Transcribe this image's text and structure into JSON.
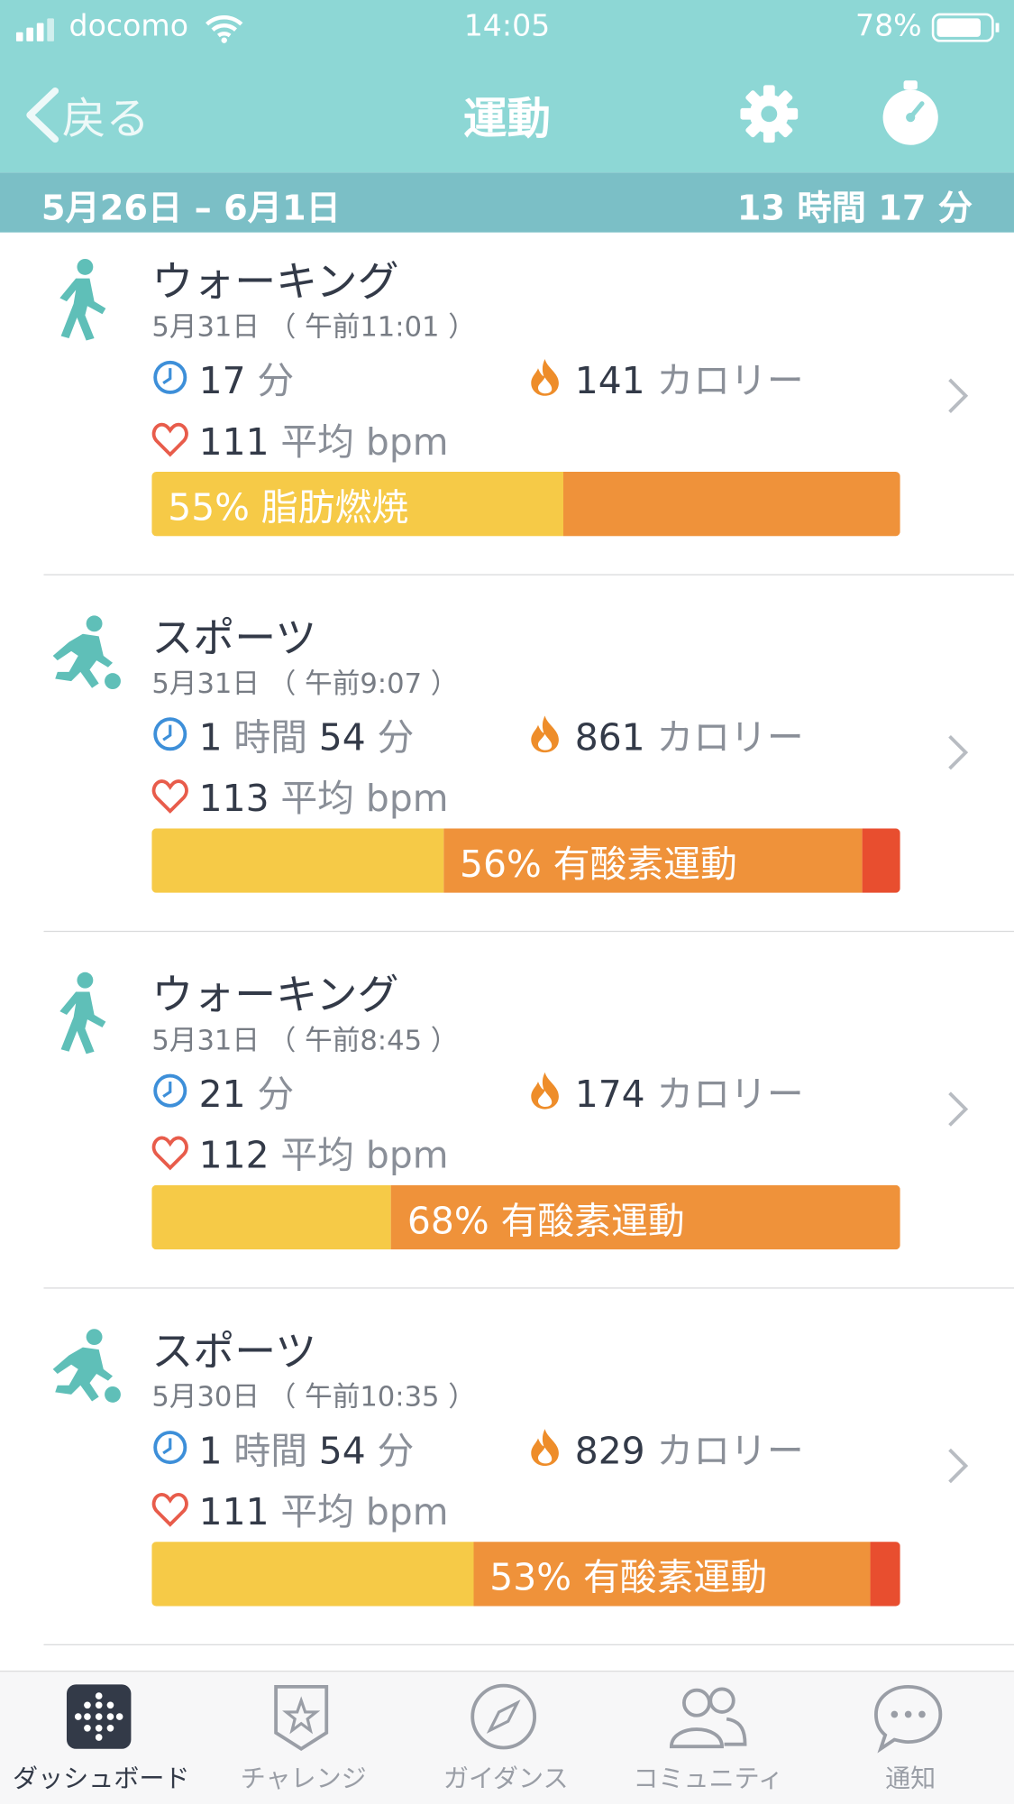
{
  "status_bar": {
    "carrier": "docomo",
    "time": "14:05",
    "battery": "78%"
  },
  "nav": {
    "back": "戻る",
    "title": "運動"
  },
  "summary": {
    "date_range": "5月26日 – 6月1日",
    "total": "13 時間 17 分"
  },
  "zone_colors": [
    "#f6ca47",
    "#ef923a",
    "#e84e2f"
  ],
  "activities": [
    {
      "icon": "walking",
      "name": "ウォーキング",
      "date": "5月31日 （ 午前11:01 ）",
      "duration": [
        "17",
        "分"
      ],
      "calories": [
        "141",
        "カロリー"
      ],
      "heart_rate": [
        "111",
        "平均 bpm"
      ],
      "zone_label": "55% 脂肪燃焼",
      "zones": [
        55,
        45
      ]
    },
    {
      "icon": "sports",
      "name": "スポーツ",
      "date": "5月31日 （ 午前9:07 ）",
      "duration": [
        "1",
        "時間",
        "54",
        "分"
      ],
      "calories": [
        "861",
        "カロリー"
      ],
      "heart_rate": [
        "113",
        "平均 bpm"
      ],
      "zone_label": "56% 有酸素運動",
      "zones": [
        39,
        56,
        5
      ]
    },
    {
      "icon": "walking",
      "name": "ウォーキング",
      "date": "5月31日 （ 午前8:45 ）",
      "duration": [
        "21",
        "分"
      ],
      "calories": [
        "174",
        "カロリー"
      ],
      "heart_rate": [
        "112",
        "平均 bpm"
      ],
      "zone_label": "68% 有酸素運動",
      "zones": [
        32,
        68
      ]
    },
    {
      "icon": "sports",
      "name": "スポーツ",
      "date": "5月30日 （ 午前10:35 ）",
      "duration": [
        "1",
        "時間",
        "54",
        "分"
      ],
      "calories": [
        "829",
        "カロリー"
      ],
      "heart_rate": [
        "111",
        "平均 bpm"
      ],
      "zone_label": "53% 有酸素運動",
      "zones": [
        43,
        53,
        4
      ]
    }
  ],
  "tabs": [
    "ダッシュボード",
    "チャレンジ",
    "ガイダンス",
    "コミュニティ",
    "通知"
  ]
}
